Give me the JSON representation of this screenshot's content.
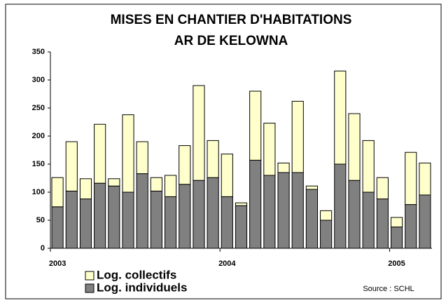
{
  "chart_data": {
    "type": "stacked_bar",
    "title": [
      "MISES EN CHANTIER D'HABITATIONS",
      "AR DE KELOWNA"
    ],
    "categories": [
      "2003",
      null,
      null,
      null,
      null,
      null,
      null,
      null,
      null,
      null,
      null,
      null,
      "2004",
      null,
      null,
      null,
      null,
      null,
      null,
      null,
      null,
      null,
      null,
      null,
      "2005",
      null,
      null
    ],
    "series": [
      {
        "name": "Log. individuels",
        "color": "#808080",
        "values": [
          74,
          102,
          88,
          116,
          111,
          100,
          133,
          102,
          92,
          114,
          121,
          126,
          92,
          76,
          157,
          130,
          135,
          135,
          105,
          50,
          150,
          121,
          100,
          88,
          38,
          78,
          95
        ]
      },
      {
        "name": "Log. collectifs",
        "color": "#ffffcc",
        "values": [
          52,
          88,
          36,
          105,
          13,
          138,
          57,
          24,
          38,
          69,
          169,
          66,
          76,
          5,
          123,
          93,
          17,
          127,
          6,
          17,
          166,
          119,
          92,
          38,
          17,
          93,
          57
        ]
      }
    ],
    "ylim": [
      0,
      350
    ],
    "yticks": [
      0,
      50,
      100,
      150,
      200,
      250,
      300,
      350
    ],
    "annotations": [
      "Source : SCHL"
    ]
  }
}
